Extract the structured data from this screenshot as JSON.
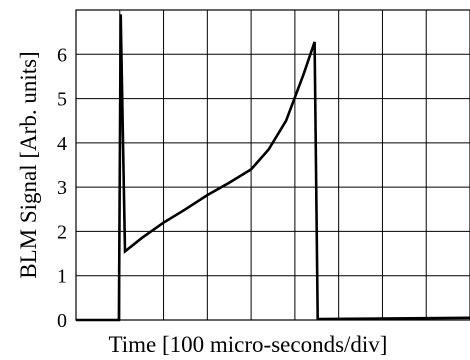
{
  "chart_data": {
    "type": "line",
    "xlabel": "Time [100 micro-seconds/div]",
    "ylabel": "BLM Signal [Arb. units]",
    "xlim": [
      0,
      9
    ],
    "ylim": [
      0,
      7
    ],
    "x_divisions": 9,
    "y_ticks": [
      0,
      1,
      2,
      3,
      4,
      5,
      6
    ],
    "y_tick_labels": [
      "0",
      "1",
      "2",
      "3",
      "4",
      "5",
      "6"
    ],
    "x_tick_labels": [],
    "grid": true,
    "series": [
      {
        "points": [
          [
            0.0,
            0.0
          ],
          [
            0.98,
            0.0
          ],
          [
            1.02,
            6.9
          ],
          [
            1.12,
            1.55
          ],
          [
            1.5,
            1.85
          ],
          [
            2.0,
            2.2
          ],
          [
            2.5,
            2.5
          ],
          [
            3.0,
            2.82
          ],
          [
            3.5,
            3.1
          ],
          [
            4.0,
            3.4
          ],
          [
            4.4,
            3.85
          ],
          [
            4.8,
            4.5
          ],
          [
            5.2,
            5.55
          ],
          [
            5.45,
            6.28
          ],
          [
            5.52,
            0.02
          ],
          [
            9.0,
            0.05
          ]
        ]
      }
    ]
  }
}
